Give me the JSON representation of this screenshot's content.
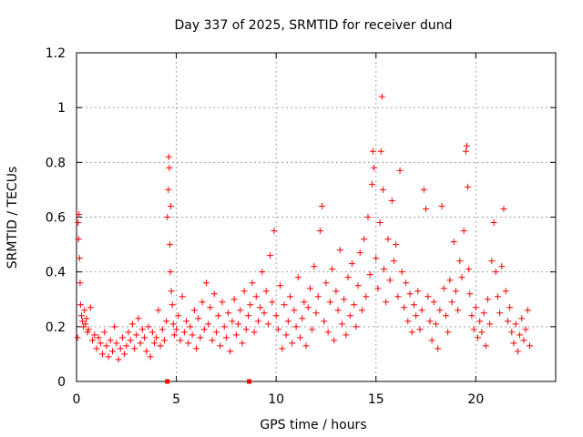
{
  "chart_data": {
    "type": "scatter",
    "title": "Day 337 of 2025, SRMTID for receiver dund",
    "xlabel": "GPS time / hours",
    "ylabel": "SRMTID / TECUs",
    "xlim": [
      0,
      24
    ],
    "ylim": [
      0,
      1.2
    ],
    "xticks": [
      0,
      5,
      10,
      15,
      20
    ],
    "xtick_labels": [
      "0",
      "5",
      "10",
      "15",
      "20"
    ],
    "yticks": [
      0,
      0.2,
      0.4,
      0.6,
      0.8,
      1.0,
      1.2
    ],
    "ytick_labels": [
      "0",
      "0.2",
      "0.4",
      "0.6",
      "0.8",
      "1",
      "1.2"
    ],
    "grid": true,
    "marker": "plus",
    "color": "#ff0000",
    "series": [
      {
        "name": "SRMTID",
        "points": [
          [
            0.05,
            0.16
          ],
          [
            0.08,
            0.58
          ],
          [
            0.1,
            0.52
          ],
          [
            0.12,
            0.61
          ],
          [
            0.15,
            0.45
          ],
          [
            0.18,
            0.36
          ],
          [
            0.2,
            0.28
          ],
          [
            0.25,
            0.24
          ],
          [
            0.3,
            0.22
          ],
          [
            0.35,
            0.2
          ],
          [
            0.4,
            0.26
          ],
          [
            0.45,
            0.21
          ],
          [
            0.5,
            0.23
          ],
          [
            0.55,
            0.18
          ],
          [
            0.6,
            0.19
          ],
          [
            0.7,
            0.27
          ],
          [
            0.8,
            0.15
          ],
          [
            0.9,
            0.17
          ],
          [
            1.0,
            0.12
          ],
          [
            1.1,
            0.16
          ],
          [
            1.2,
            0.14
          ],
          [
            1.3,
            0.1
          ],
          [
            1.4,
            0.18
          ],
          [
            1.5,
            0.13
          ],
          [
            1.6,
            0.09
          ],
          [
            1.7,
            0.15
          ],
          [
            1.8,
            0.11
          ],
          [
            1.9,
            0.2
          ],
          [
            2.0,
            0.14
          ],
          [
            2.1,
            0.08
          ],
          [
            2.2,
            0.12
          ],
          [
            2.3,
            0.16
          ],
          [
            2.4,
            0.1
          ],
          [
            2.5,
            0.13
          ],
          [
            2.6,
            0.18
          ],
          [
            2.7,
            0.15
          ],
          [
            2.8,
            0.21
          ],
          [
            2.9,
            0.12
          ],
          [
            3.0,
            0.17
          ],
          [
            3.1,
            0.23
          ],
          [
            3.2,
            0.14
          ],
          [
            3.3,
            0.19
          ],
          [
            3.4,
            0.16
          ],
          [
            3.5,
            0.11
          ],
          [
            3.6,
            0.2
          ],
          [
            3.7,
            0.09
          ],
          [
            3.8,
            0.18
          ],
          [
            3.9,
            0.14
          ],
          [
            4.0,
            0.16
          ],
          [
            4.1,
            0.26
          ],
          [
            4.2,
            0.13
          ],
          [
            4.3,
            0.19
          ],
          [
            4.4,
            0.15
          ],
          [
            4.5,
            0.22
          ],
          [
            4.55,
            0.6
          ],
          [
            4.6,
            0.7
          ],
          [
            4.62,
            0.82
          ],
          [
            4.65,
            0.78
          ],
          [
            4.68,
            0.5
          ],
          [
            4.7,
            0.4
          ],
          [
            4.72,
            0.64
          ],
          [
            4.75,
            0.33
          ],
          [
            4.8,
            0.28
          ],
          [
            4.85,
            0.21
          ],
          [
            4.9,
            0.17
          ],
          [
            5.0,
            0.19
          ],
          [
            5.1,
            0.24
          ],
          [
            5.2,
            0.15
          ],
          [
            5.3,
            0.31
          ],
          [
            5.4,
            0.18
          ],
          [
            5.5,
            0.22
          ],
          [
            5.6,
            0.14
          ],
          [
            5.7,
            0.2
          ],
          [
            5.8,
            0.17
          ],
          [
            5.9,
            0.26
          ],
          [
            6.0,
            0.12
          ],
          [
            6.1,
            0.23
          ],
          [
            6.2,
            0.16
          ],
          [
            6.3,
            0.29
          ],
          [
            6.4,
            0.19
          ],
          [
            6.5,
            0.36
          ],
          [
            6.6,
            0.21
          ],
          [
            6.7,
            0.27
          ],
          [
            6.8,
            0.15
          ],
          [
            6.9,
            0.32
          ],
          [
            7.0,
            0.18
          ],
          [
            7.1,
            0.24
          ],
          [
            7.2,
            0.13
          ],
          [
            7.3,
            0.29
          ],
          [
            7.4,
            0.2
          ],
          [
            7.5,
            0.16
          ],
          [
            7.6,
            0.25
          ],
          [
            7.7,
            0.11
          ],
          [
            7.8,
            0.22
          ],
          [
            7.9,
            0.3
          ],
          [
            8.0,
            0.17
          ],
          [
            8.1,
            0.21
          ],
          [
            8.2,
            0.26
          ],
          [
            8.3,
            0.14
          ],
          [
            8.4,
            0.33
          ],
          [
            8.5,
            0.19
          ],
          [
            8.6,
            0.24
          ],
          [
            8.7,
            0.28
          ],
          [
            8.8,
            0.36
          ],
          [
            8.9,
            0.18
          ],
          [
            9.0,
            0.31
          ],
          [
            9.1,
            0.22
          ],
          [
            9.2,
            0.27
          ],
          [
            9.3,
            0.4
          ],
          [
            9.4,
            0.25
          ],
          [
            9.5,
            0.33
          ],
          [
            9.6,
            0.21
          ],
          [
            9.7,
            0.46
          ],
          [
            9.8,
            0.29
          ],
          [
            9.9,
            0.55
          ],
          [
            10.0,
            0.24
          ],
          [
            10.1,
            0.19
          ],
          [
            10.2,
            0.35
          ],
          [
            10.3,
            0.12
          ],
          [
            10.4,
            0.28
          ],
          [
            10.5,
            0.17
          ],
          [
            10.6,
            0.22
          ],
          [
            10.7,
            0.31
          ],
          [
            10.8,
            0.14
          ],
          [
            10.9,
            0.26
          ],
          [
            11.0,
            0.2
          ],
          [
            11.1,
            0.38
          ],
          [
            11.2,
            0.16
          ],
          [
            11.3,
            0.23
          ],
          [
            11.4,
            0.29
          ],
          [
            11.5,
            0.13
          ],
          [
            11.6,
            0.27
          ],
          [
            11.7,
            0.34
          ],
          [
            11.8,
            0.19
          ],
          [
            11.9,
            0.42
          ],
          [
            12.0,
            0.25
          ],
          [
            12.1,
            0.31
          ],
          [
            12.2,
            0.55
          ],
          [
            12.3,
            0.64
          ],
          [
            12.4,
            0.22
          ],
          [
            12.5,
            0.36
          ],
          [
            12.6,
            0.18
          ],
          [
            12.7,
            0.29
          ],
          [
            12.8,
            0.41
          ],
          [
            12.9,
            0.15
          ],
          [
            13.0,
            0.33
          ],
          [
            13.1,
            0.26
          ],
          [
            13.2,
            0.48
          ],
          [
            13.3,
            0.21
          ],
          [
            13.4,
            0.3
          ],
          [
            13.5,
            0.17
          ],
          [
            13.6,
            0.38
          ],
          [
            13.7,
            0.24
          ],
          [
            13.8,
            0.43
          ],
          [
            13.9,
            0.28
          ],
          [
            14.0,
            0.2
          ],
          [
            14.1,
            0.35
          ],
          [
            14.2,
            0.47
          ],
          [
            14.3,
            0.26
          ],
          [
            14.4,
            0.52
          ],
          [
            14.5,
            0.31
          ],
          [
            14.6,
            0.6
          ],
          [
            14.7,
            0.39
          ],
          [
            14.8,
            0.72
          ],
          [
            14.85,
            0.84
          ],
          [
            14.9,
            0.78
          ],
          [
            15.0,
            0.45
          ],
          [
            15.1,
            0.34
          ],
          [
            15.2,
            0.58
          ],
          [
            15.25,
            0.84
          ],
          [
            15.3,
            1.04
          ],
          [
            15.35,
            0.7
          ],
          [
            15.4,
            0.41
          ],
          [
            15.5,
            0.29
          ],
          [
            15.6,
            0.52
          ],
          [
            15.7,
            0.37
          ],
          [
            15.8,
            0.66
          ],
          [
            15.9,
            0.44
          ],
          [
            16.0,
            0.5
          ],
          [
            16.1,
            0.31
          ],
          [
            16.2,
            0.77
          ],
          [
            16.3,
            0.4
          ],
          [
            16.4,
            0.27
          ],
          [
            16.5,
            0.36
          ],
          [
            16.6,
            0.22
          ],
          [
            16.7,
            0.32
          ],
          [
            16.8,
            0.18
          ],
          [
            16.9,
            0.28
          ],
          [
            17.0,
            0.24
          ],
          [
            17.1,
            0.33
          ],
          [
            17.2,
            0.19
          ],
          [
            17.3,
            0.26
          ],
          [
            17.4,
            0.7
          ],
          [
            17.5,
            0.63
          ],
          [
            17.6,
            0.31
          ],
          [
            17.7,
            0.22
          ],
          [
            17.8,
            0.15
          ],
          [
            17.9,
            0.29
          ],
          [
            18.0,
            0.21
          ],
          [
            18.1,
            0.12
          ],
          [
            18.2,
            0.26
          ],
          [
            18.3,
            0.64
          ],
          [
            18.4,
            0.34
          ],
          [
            18.5,
            0.24
          ],
          [
            18.6,
            0.18
          ],
          [
            18.7,
            0.37
          ],
          [
            18.8,
            0.29
          ],
          [
            18.9,
            0.51
          ],
          [
            19.0,
            0.33
          ],
          [
            19.1,
            0.26
          ],
          [
            19.2,
            0.44
          ],
          [
            19.3,
            0.38
          ],
          [
            19.4,
            0.55
          ],
          [
            19.5,
            0.84
          ],
          [
            19.55,
            0.86
          ],
          [
            19.6,
            0.71
          ],
          [
            19.65,
            0.41
          ],
          [
            19.7,
            0.32
          ],
          [
            19.8,
            0.24
          ],
          [
            19.9,
            0.19
          ],
          [
            20.0,
            0.27
          ],
          [
            20.1,
            0.16
          ],
          [
            20.2,
            0.22
          ],
          [
            20.3,
            0.18
          ],
          [
            20.4,
            0.25
          ],
          [
            20.5,
            0.13
          ],
          [
            20.6,
            0.3
          ],
          [
            20.7,
            0.21
          ],
          [
            20.8,
            0.44
          ],
          [
            20.9,
            0.58
          ],
          [
            21.0,
            0.4
          ],
          [
            21.1,
            0.31
          ],
          [
            21.2,
            0.25
          ],
          [
            21.3,
            0.42
          ],
          [
            21.4,
            0.63
          ],
          [
            21.5,
            0.33
          ],
          [
            21.6,
            0.22
          ],
          [
            21.7,
            0.27
          ],
          [
            21.8,
            0.18
          ],
          [
            21.9,
            0.14
          ],
          [
            22.0,
            0.21
          ],
          [
            22.1,
            0.11
          ],
          [
            22.2,
            0.17
          ],
          [
            22.3,
            0.23
          ],
          [
            22.4,
            0.15
          ],
          [
            22.5,
            0.19
          ],
          [
            22.6,
            0.26
          ],
          [
            22.7,
            0.13
          ]
        ]
      }
    ],
    "zero_markers": [
      4.55,
      8.65
    ]
  }
}
